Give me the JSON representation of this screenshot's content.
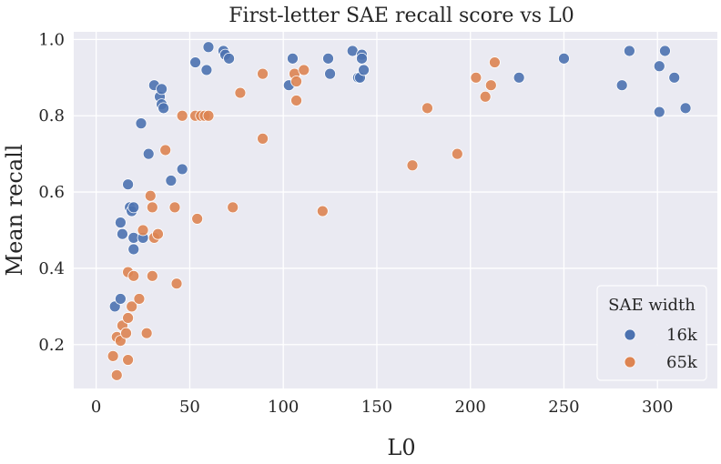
{
  "chart_data": {
    "type": "scatter",
    "title": "First-letter SAE recall score vs L0",
    "xlabel": "L0",
    "ylabel": "Mean recall",
    "xlim": [
      -12,
      332
    ],
    "ylim": [
      0.085,
      1.02
    ],
    "xticks": [
      0,
      50,
      100,
      150,
      200,
      250,
      300
    ],
    "xtick_labels": [
      "0",
      "50",
      "100",
      "150",
      "200",
      "250",
      "300"
    ],
    "yticks": [
      0.2,
      0.4,
      0.6,
      0.8,
      1.0
    ],
    "ytick_labels": [
      "0.2",
      "0.4",
      "0.6",
      "0.8",
      "1.0"
    ],
    "grid": true,
    "background": "#eaeaf2",
    "legend": {
      "title": "SAE width",
      "position": "bottom-right"
    },
    "series": [
      {
        "name": "16k",
        "color": "#4c72b0",
        "points": [
          [
            10,
            0.3
          ],
          [
            13,
            0.32
          ],
          [
            13,
            0.52
          ],
          [
            14,
            0.49
          ],
          [
            17,
            0.62
          ],
          [
            18,
            0.56
          ],
          [
            19,
            0.55
          ],
          [
            20,
            0.48
          ],
          [
            20,
            0.45
          ],
          [
            20,
            0.56
          ],
          [
            24,
            0.78
          ],
          [
            25,
            0.48
          ],
          [
            28,
            0.7
          ],
          [
            31,
            0.88
          ],
          [
            34,
            0.85
          ],
          [
            35,
            0.87
          ],
          [
            35,
            0.83
          ],
          [
            36,
            0.82
          ],
          [
            40,
            0.63
          ],
          [
            46,
            0.66
          ],
          [
            53,
            0.94
          ],
          [
            59,
            0.92
          ],
          [
            60,
            0.98
          ],
          [
            68,
            0.97
          ],
          [
            69,
            0.96
          ],
          [
            71,
            0.95
          ],
          [
            103,
            0.88
          ],
          [
            105,
            0.95
          ],
          [
            124,
            0.95
          ],
          [
            125,
            0.91
          ],
          [
            137,
            0.97
          ],
          [
            140,
            0.9
          ],
          [
            141,
            0.9
          ],
          [
            142,
            0.96
          ],
          [
            142,
            0.95
          ],
          [
            143,
            0.92
          ],
          [
            226,
            0.9
          ],
          [
            250,
            0.95
          ],
          [
            281,
            0.88
          ],
          [
            285,
            0.97
          ],
          [
            301,
            0.93
          ],
          [
            301,
            0.81
          ],
          [
            304,
            0.97
          ],
          [
            309,
            0.9
          ],
          [
            315,
            0.82
          ]
        ]
      },
      {
        "name": "65k",
        "color": "#dd8452",
        "points": [
          [
            9,
            0.17
          ],
          [
            11,
            0.12
          ],
          [
            11,
            0.22
          ],
          [
            13,
            0.21
          ],
          [
            14,
            0.25
          ],
          [
            16,
            0.23
          ],
          [
            17,
            0.16
          ],
          [
            17,
            0.27
          ],
          [
            17,
            0.39
          ],
          [
            19,
            0.3
          ],
          [
            20,
            0.38
          ],
          [
            23,
            0.32
          ],
          [
            25,
            0.5
          ],
          [
            27,
            0.23
          ],
          [
            29,
            0.59
          ],
          [
            30,
            0.56
          ],
          [
            30,
            0.38
          ],
          [
            31,
            0.48
          ],
          [
            33,
            0.49
          ],
          [
            37,
            0.71
          ],
          [
            42,
            0.56
          ],
          [
            43,
            0.36
          ],
          [
            46,
            0.8
          ],
          [
            53,
            0.8
          ],
          [
            54,
            0.53
          ],
          [
            56,
            0.8
          ],
          [
            58,
            0.8
          ],
          [
            60,
            0.8
          ],
          [
            73,
            0.56
          ],
          [
            77,
            0.86
          ],
          [
            89,
            0.91
          ],
          [
            89,
            0.74
          ],
          [
            106,
            0.91
          ],
          [
            107,
            0.84
          ],
          [
            107,
            0.89
          ],
          [
            111,
            0.92
          ],
          [
            121,
            0.55
          ],
          [
            169,
            0.67
          ],
          [
            177,
            0.82
          ],
          [
            193,
            0.7
          ],
          [
            203,
            0.9
          ],
          [
            208,
            0.85
          ],
          [
            211,
            0.88
          ],
          [
            213,
            0.94
          ]
        ]
      }
    ]
  }
}
